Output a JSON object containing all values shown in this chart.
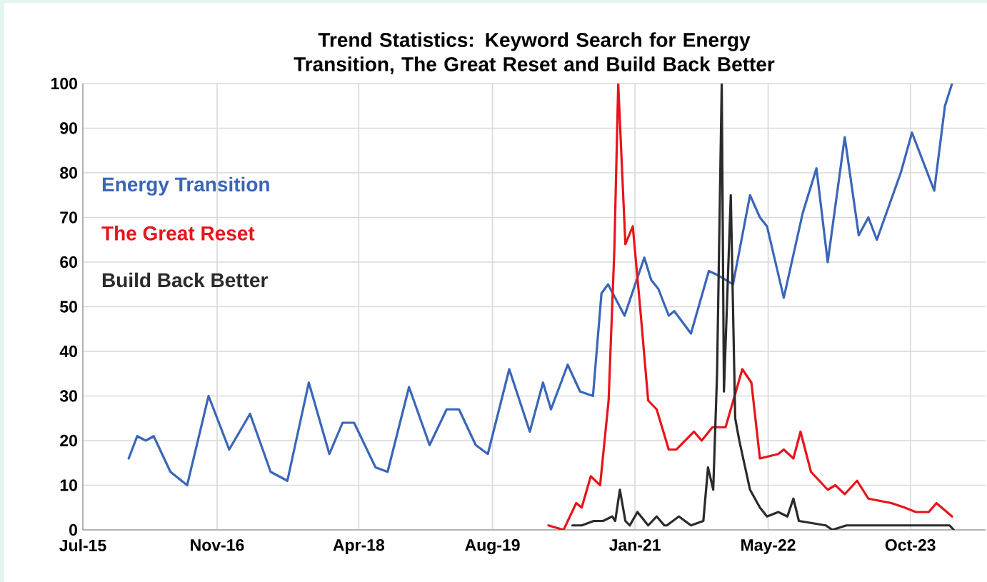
{
  "chart_data": {
    "type": "line",
    "title": "Trend Statistics: Keyword Search for Energy Transition, The Great Reset and Build Back Better",
    "xlim": [
      "2015-07-01",
      "2024-07-01"
    ],
    "ylim": [
      0,
      100
    ],
    "xticks": [
      {
        "value": "2015-07-01",
        "label": "Jul-15"
      },
      {
        "value": "2016-11-01",
        "label": "Nov-16"
      },
      {
        "value": "2018-04-01",
        "label": "Apr-18"
      },
      {
        "value": "2019-08-01",
        "label": "Aug-19"
      },
      {
        "value": "2021-01-01",
        "label": "Jan-21"
      },
      {
        "value": "2022-05-01",
        "label": "May-22"
      },
      {
        "value": "2023-10-01",
        "label": "Oct-23"
      }
    ],
    "yticks": [
      0,
      10,
      20,
      30,
      40,
      50,
      60,
      70,
      80,
      90,
      100
    ],
    "grid": true,
    "legend": "top left",
    "marker": "none",
    "line_style": "solid",
    "series": [
      {
        "name": "Energy Transition",
        "color": "#3a66b8",
        "x": [
          "2015-12-15",
          "2016-01-15",
          "2016-02-15",
          "2016-03-15",
          "2016-05-15",
          "2016-07-15",
          "2016-10-01",
          "2016-12-15",
          "2017-03-01",
          "2017-05-15",
          "2017-07-15",
          "2017-10-01",
          "2017-12-15",
          "2018-02-01",
          "2018-03-15",
          "2018-06-01",
          "2018-07-15",
          "2018-10-01",
          "2018-12-15",
          "2019-02-15",
          "2019-04-01",
          "2019-06-01",
          "2019-07-15",
          "2019-10-01",
          "2019-12-15",
          "2020-02-01",
          "2020-03-01",
          "2020-05-01",
          "2020-06-15",
          "2020-08-01",
          "2020-09-01",
          "2020-09-25",
          "2020-11-24",
          "2021-02-04",
          "2021-03-01",
          "2021-03-27",
          "2021-05-04",
          "2021-05-24",
          "2021-07-24",
          "2021-09-27",
          "2021-11-01",
          "2021-12-24",
          "2022-02-24",
          "2022-04-01",
          "2022-04-27",
          "2022-06-27",
          "2022-09-04",
          "2022-10-24",
          "2022-12-04",
          "2023-02-04",
          "2023-03-27",
          "2023-05-01",
          "2023-06-01",
          "2023-08-27",
          "2023-10-07",
          "2023-12-27",
          "2024-02-04",
          "2024-03-01"
        ],
        "values": [
          16,
          21,
          20,
          21,
          13,
          10,
          30,
          18,
          26,
          13,
          11,
          33,
          17,
          24,
          24,
          14,
          13,
          32,
          19,
          27,
          27,
          19,
          17,
          36,
          22,
          33,
          27,
          37,
          31,
          30,
          53,
          55,
          48,
          61,
          56,
          54,
          48,
          49,
          44,
          58,
          57,
          55,
          75,
          70,
          68,
          52,
          71,
          81,
          60,
          88,
          66,
          70,
          65,
          80,
          89,
          76,
          95,
          100
        ]
      },
      {
        "name": "The Great Reset",
        "color": "#e8141b",
        "x": [
          "2020-02-21",
          "2020-04-16",
          "2020-06-01",
          "2020-06-21",
          "2020-07-24",
          "2020-08-27",
          "2020-09-27",
          "2020-10-18",
          "2020-11-01",
          "2020-11-27",
          "2020-12-24",
          "2021-01-21",
          "2021-02-18",
          "2021-03-21",
          "2021-05-04",
          "2021-06-01",
          "2021-08-04",
          "2021-09-01",
          "2021-10-10",
          "2021-11-27",
          "2022-01-27",
          "2022-03-01",
          "2022-04-01",
          "2022-06-07",
          "2022-06-27",
          "2022-08-01",
          "2022-08-27",
          "2022-10-04",
          "2022-12-04",
          "2023-01-01",
          "2023-02-04",
          "2023-03-21",
          "2023-05-01",
          "2023-07-24",
          "2023-09-10",
          "2023-10-21",
          "2023-12-07",
          "2024-01-04",
          "2024-03-01"
        ],
        "values": [
          1,
          0,
          6,
          5,
          12,
          10,
          29,
          63,
          100,
          64,
          68,
          49,
          29,
          27,
          18,
          18,
          22,
          20,
          23,
          23,
          36,
          33,
          16,
          17,
          18,
          16,
          22,
          13,
          9,
          10,
          8,
          11,
          7,
          6,
          5,
          4,
          4,
          6,
          3
        ]
      },
      {
        "name": "Build Back Better",
        "color": "#2b2b2b",
        "x": [
          "2020-05-18",
          "2020-06-21",
          "2020-08-04",
          "2020-09-07",
          "2020-10-10",
          "2020-10-21",
          "2020-11-07",
          "2020-11-27",
          "2020-12-13",
          "2021-01-10",
          "2021-02-18",
          "2021-03-21",
          "2021-04-18",
          "2021-04-27",
          "2021-06-10",
          "2021-07-24",
          "2021-09-07",
          "2021-09-24",
          "2021-10-13",
          "2021-10-27",
          "2021-11-13",
          "2021-11-21",
          "2021-12-16",
          "2022-01-01",
          "2022-01-16",
          "2022-02-24",
          "2022-04-01",
          "2022-04-27",
          "2022-06-07",
          "2022-07-10",
          "2022-08-01",
          "2022-08-21",
          "2022-11-27",
          "2022-12-21",
          "2023-02-10",
          "2023-04-18",
          "2023-05-21",
          "2024-02-21",
          "2024-03-07"
        ],
        "values": [
          1,
          1,
          2,
          2,
          3,
          2,
          9,
          2,
          1,
          4,
          1,
          3,
          1,
          1,
          3,
          1,
          2,
          14,
          9,
          35,
          100,
          31,
          75,
          25,
          20,
          9,
          5,
          3,
          4,
          3,
          7,
          2,
          1,
          0,
          1,
          1,
          1,
          1,
          0
        ]
      }
    ]
  }
}
